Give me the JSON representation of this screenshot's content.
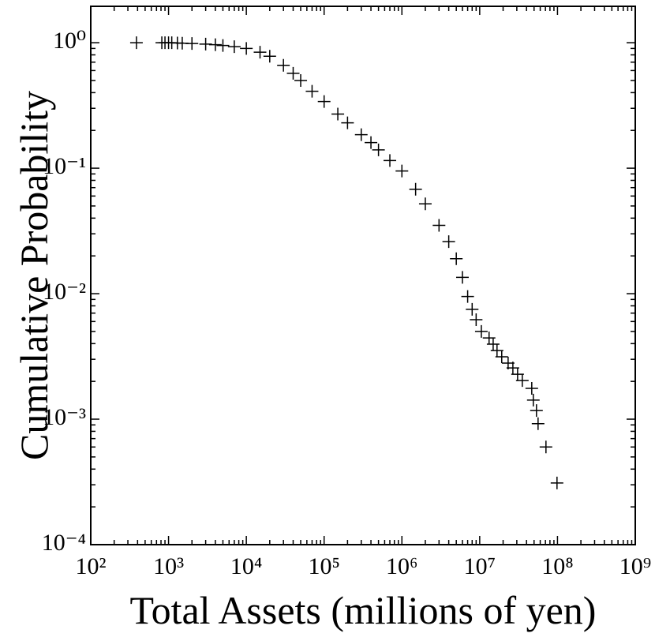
{
  "chart_data": {
    "type": "scatter",
    "x_label": "Total Assets (millions of yen)",
    "y_label": "Cumulative Probability",
    "x_log": true,
    "y_log": true,
    "marker": "+",
    "color": "#000000",
    "xlim": [
      100,
      1000000000
    ],
    "ylim": [
      0.0001,
      1.95
    ],
    "xticks": [
      {
        "value": 100,
        "label": "10²"
      },
      {
        "value": 1000,
        "label": "10³"
      },
      {
        "value": 10000,
        "label": "10⁴"
      },
      {
        "value": 100000,
        "label": "10⁵"
      },
      {
        "value": 1000000,
        "label": "10⁶"
      },
      {
        "value": 10000000,
        "label": "10⁷"
      },
      {
        "value": 100000000,
        "label": "10⁸"
      },
      {
        "value": 1000000000,
        "label": "10⁹"
      }
    ],
    "yticks": [
      {
        "value": 0.0001,
        "label": "10⁻⁴"
      },
      {
        "value": 0.001,
        "label": "10⁻³"
      },
      {
        "value": 0.01,
        "label": "10⁻²"
      },
      {
        "value": 0.1,
        "label": "10⁻¹"
      },
      {
        "value": 1,
        "label": "10⁰"
      }
    ],
    "x": [
      387,
      820,
      900,
      1000,
      1100,
      1300,
      1500,
      2000,
      3000,
      4000,
      5000,
      7000,
      10000,
      15000,
      20000,
      30000,
      40000,
      50000,
      70000,
      100000,
      150000,
      200000,
      300000,
      400000,
      500000,
      700000,
      1000000,
      1500000,
      2000000,
      3000000,
      4000000,
      5000000,
      6000000,
      7000000,
      8000000,
      9000000,
      10500000,
      13200000,
      14900000,
      16700000,
      19200000,
      23200000,
      26700000,
      30700000,
      35300000,
      46700000,
      48900000,
      53700000,
      56300000,
      71100000,
      98600000
    ],
    "values": [
      1.0,
      1.0,
      1.0,
      1.0,
      1.0,
      0.995,
      0.99,
      0.985,
      0.975,
      0.965,
      0.95,
      0.93,
      0.9,
      0.84,
      0.78,
      0.66,
      0.57,
      0.5,
      0.41,
      0.34,
      0.27,
      0.23,
      0.185,
      0.16,
      0.14,
      0.115,
      0.095,
      0.068,
      0.052,
      0.035,
      0.026,
      0.019,
      0.0135,
      0.0095,
      0.0075,
      0.0062,
      0.005,
      0.00444,
      0.00396,
      0.00352,
      0.00314,
      0.0028,
      0.00256,
      0.00228,
      0.00203,
      0.00176,
      0.00142,
      0.00117,
      0.00092,
      0.0006,
      0.00031
    ]
  }
}
